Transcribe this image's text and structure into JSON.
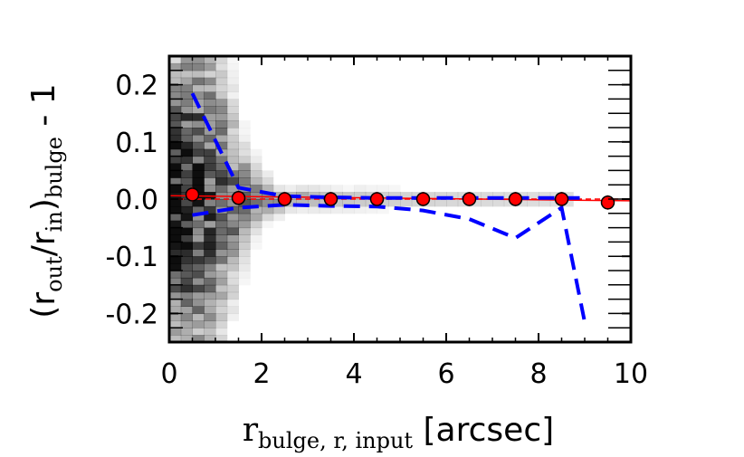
{
  "chart_data": {
    "type": "scatter",
    "xlim": [
      0,
      10
    ],
    "ylim": [
      -0.25,
      0.25
    ],
    "x_ticks": [
      0,
      2,
      4,
      6,
      8,
      10
    ],
    "x_tick_labels": [
      "0",
      "2",
      "4",
      "6",
      "8",
      "10"
    ],
    "y_ticks": [
      0.2,
      0.1,
      0.0,
      -0.1,
      -0.2
    ],
    "y_tick_labels": [
      "0.2",
      "0.1",
      "0.0",
      "-0.1",
      "-0.2"
    ],
    "xlabel": {
      "base": "r",
      "subscript": "bulge, r, input",
      "suffix": " [arcsec]"
    },
    "ylabel": {
      "open": "(r",
      "sub1": "out",
      "mid": "/r",
      "sub2": "in",
      "close": ")",
      "sub3": "bulge",
      "suffix": " - 1"
    },
    "grid": false,
    "colors": {
      "points": "#ff0000",
      "point_edge": "#000000",
      "dashed_lines": "#0000ff",
      "zero_line": "#ff0000",
      "density": "#000000"
    },
    "medians": {
      "x": [
        0.5,
        1.5,
        2.5,
        3.5,
        4.5,
        5.5,
        6.5,
        7.5,
        8.5,
        9.5
      ],
      "y": [
        0.008,
        0.002,
        0.0,
        0.0,
        0.0,
        0.0,
        0.0,
        0.0,
        0.0,
        -0.006
      ]
    },
    "upper_dashed": {
      "x": [
        0.5,
        1.5,
        2.5,
        3.5,
        4.5,
        5.5,
        6.5,
        7.5,
        8.5,
        9.0
      ],
      "y": [
        0.185,
        0.02,
        0.005,
        0.003,
        0.002,
        0.002,
        0.002,
        0.002,
        0.002,
        0.002
      ]
    },
    "lower_dashed": {
      "x": [
        0.5,
        1.5,
        2.5,
        3.5,
        4.5,
        5.5,
        6.5,
        7.5,
        8.5,
        9.0
      ],
      "y": [
        -0.028,
        -0.015,
        -0.01,
        -0.012,
        -0.013,
        -0.02,
        -0.035,
        -0.068,
        -0.015,
        -0.215
      ]
    },
    "zero_line_fit": {
      "x": [
        0,
        10
      ],
      "y": [
        0.006,
        -0.003
      ]
    }
  }
}
